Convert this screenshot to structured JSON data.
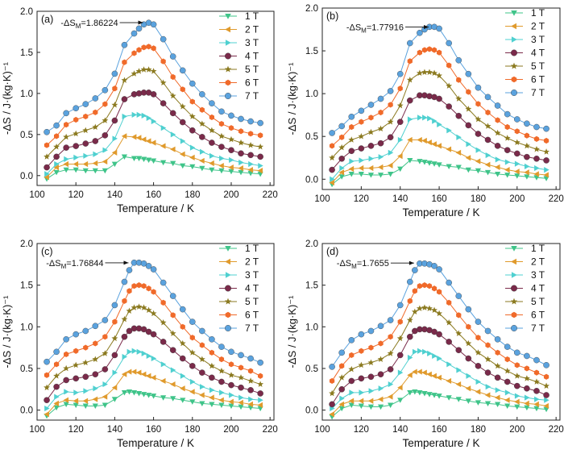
{
  "chart_data": [
    {
      "type": "line",
      "panel_label": "(a)",
      "annotation": {
        "prefix": "-ΔS",
        "sub": "M",
        "value": "=1.86224",
        "x": 157.5,
        "y": 1.86224
      },
      "xlabel": "Temperature / K",
      "ylabel": "-ΔS / J·(kg·K)⁻¹",
      "xlim": [
        100,
        222
      ],
      "ylim": [
        -0.12,
        2.0
      ],
      "x_ticks": [
        "100",
        "120",
        "140",
        "160",
        "180",
        "200",
        "220"
      ],
      "y_ticks": [
        "0.0",
        "0.5",
        "1.0",
        "1.5",
        "2.0"
      ],
      "x": [
        105,
        110,
        115,
        120,
        125,
        130,
        135,
        140,
        145,
        150,
        152.5,
        155,
        157.5,
        160,
        165,
        170,
        175,
        180,
        185,
        190,
        195,
        200,
        205,
        210,
        215
      ],
      "series": [
        {
          "name": "1 T",
          "values": [
            -0.04,
            0.04,
            0.07,
            0.07,
            0.06,
            0.06,
            0.06,
            0.14,
            0.23,
            0.21,
            0.21,
            0.2,
            0.19,
            0.18,
            0.16,
            0.15,
            0.12,
            0.11,
            0.09,
            0.07,
            0.06,
            0.05,
            0.04,
            0.03,
            0.02
          ]
        },
        {
          "name": "2 T",
          "values": [
            -0.02,
            0.1,
            0.14,
            0.14,
            0.14,
            0.15,
            0.17,
            0.28,
            0.48,
            0.47,
            0.46,
            0.44,
            0.42,
            0.4,
            0.36,
            0.32,
            0.26,
            0.22,
            0.18,
            0.15,
            0.12,
            0.1,
            0.09,
            0.07,
            0.06
          ]
        },
        {
          "name": "3 T",
          "values": [
            0.02,
            0.14,
            0.2,
            0.22,
            0.24,
            0.26,
            0.31,
            0.45,
            0.72,
            0.74,
            0.74,
            0.73,
            0.7,
            0.66,
            0.58,
            0.5,
            0.42,
            0.34,
            0.29,
            0.24,
            0.21,
            0.19,
            0.16,
            0.14,
            0.12
          ]
        },
        {
          "name": "4 T",
          "values": [
            0.1,
            0.23,
            0.34,
            0.36,
            0.39,
            0.42,
            0.49,
            0.67,
            0.93,
            0.99,
            1.0,
            1.01,
            1.01,
            0.99,
            0.88,
            0.76,
            0.65,
            0.55,
            0.47,
            0.4,
            0.35,
            0.31,
            0.27,
            0.25,
            0.23
          ]
        },
        {
          "name": "5 T",
          "values": [
            0.23,
            0.35,
            0.47,
            0.51,
            0.55,
            0.59,
            0.67,
            0.86,
            1.16,
            1.24,
            1.27,
            1.29,
            1.29,
            1.27,
            1.13,
            0.97,
            0.84,
            0.72,
            0.63,
            0.55,
            0.48,
            0.44,
            0.4,
            0.37,
            0.35
          ]
        },
        {
          "name": "6 T",
          "values": [
            0.37,
            0.48,
            0.62,
            0.68,
            0.72,
            0.77,
            0.87,
            1.06,
            1.38,
            1.49,
            1.53,
            1.56,
            1.57,
            1.55,
            1.39,
            1.2,
            1.05,
            0.9,
            0.8,
            0.71,
            0.63,
            0.58,
            0.54,
            0.51,
            0.49
          ]
        },
        {
          "name": "7 T",
          "values": [
            0.53,
            0.61,
            0.76,
            0.82,
            0.87,
            0.94,
            1.04,
            1.24,
            1.59,
            1.73,
            1.79,
            1.84,
            1.86,
            1.84,
            1.66,
            1.45,
            1.28,
            1.12,
            0.99,
            0.88,
            0.78,
            0.73,
            0.69,
            0.66,
            0.64
          ]
        }
      ]
    },
    {
      "type": "line",
      "panel_label": "(b)",
      "annotation": {
        "prefix": "-ΔS",
        "sub": "M",
        "value": "=1.77916",
        "x": 157.5,
        "y": 1.77916
      },
      "xlabel": "Temperature / K",
      "ylabel": "-ΔS / J·(kg·K)⁻¹",
      "xlim": [
        100,
        222
      ],
      "ylim": [
        -0.12,
        2.0
      ],
      "x_ticks": [
        "100",
        "120",
        "140",
        "160",
        "180",
        "200",
        "220"
      ],
      "y_ticks": [
        "0.0",
        "0.5",
        "1.0",
        "1.5",
        "2.0"
      ],
      "x": [
        105,
        110,
        115,
        120,
        125,
        130,
        135,
        140,
        145,
        150,
        152.5,
        155,
        157.5,
        160,
        165,
        170,
        175,
        180,
        185,
        190,
        195,
        200,
        205,
        210,
        215
      ],
      "series": [
        {
          "name": "1 T",
          "values": [
            -0.06,
            0.03,
            0.06,
            0.06,
            0.05,
            0.05,
            0.06,
            0.12,
            0.22,
            0.21,
            0.2,
            0.19,
            0.18,
            0.17,
            0.15,
            0.14,
            0.11,
            0.1,
            0.08,
            0.06,
            0.05,
            0.04,
            0.03,
            0.02,
            0.01
          ]
        },
        {
          "name": "2 T",
          "values": [
            -0.04,
            0.08,
            0.12,
            0.13,
            0.13,
            0.14,
            0.16,
            0.27,
            0.46,
            0.46,
            0.45,
            0.43,
            0.41,
            0.39,
            0.35,
            0.31,
            0.25,
            0.21,
            0.17,
            0.14,
            0.11,
            0.09,
            0.08,
            0.06,
            0.05
          ]
        },
        {
          "name": "3 T",
          "values": [
            0.0,
            0.13,
            0.21,
            0.22,
            0.24,
            0.26,
            0.31,
            0.46,
            0.7,
            0.72,
            0.72,
            0.71,
            0.68,
            0.64,
            0.57,
            0.49,
            0.41,
            0.34,
            0.28,
            0.23,
            0.2,
            0.18,
            0.15,
            0.13,
            0.11
          ]
        },
        {
          "name": "4 T",
          "values": [
            0.11,
            0.24,
            0.33,
            0.36,
            0.39,
            0.42,
            0.49,
            0.67,
            0.92,
            0.98,
            0.98,
            0.97,
            0.96,
            0.94,
            0.85,
            0.74,
            0.63,
            0.53,
            0.46,
            0.39,
            0.34,
            0.3,
            0.26,
            0.24,
            0.22
          ]
        },
        {
          "name": "5 T",
          "values": [
            0.25,
            0.37,
            0.46,
            0.5,
            0.55,
            0.59,
            0.67,
            0.86,
            1.16,
            1.24,
            1.25,
            1.25,
            1.24,
            1.21,
            1.09,
            0.94,
            0.82,
            0.7,
            0.62,
            0.54,
            0.48,
            0.43,
            0.39,
            0.35,
            0.32
          ]
        },
        {
          "name": "6 T",
          "values": [
            0.39,
            0.49,
            0.61,
            0.67,
            0.72,
            0.78,
            0.87,
            1.06,
            1.38,
            1.48,
            1.51,
            1.52,
            1.51,
            1.48,
            1.33,
            1.16,
            1.02,
            0.88,
            0.78,
            0.69,
            0.61,
            0.56,
            0.51,
            0.47,
            0.45
          ]
        },
        {
          "name": "7 T",
          "values": [
            0.54,
            0.62,
            0.73,
            0.8,
            0.87,
            0.94,
            1.03,
            1.23,
            1.59,
            1.71,
            1.75,
            1.78,
            1.78,
            1.76,
            1.59,
            1.39,
            1.23,
            1.07,
            0.96,
            0.86,
            0.76,
            0.7,
            0.65,
            0.61,
            0.59
          ]
        }
      ]
    },
    {
      "type": "line",
      "panel_label": "(c)",
      "annotation": {
        "prefix": "-ΔS",
        "sub": "M",
        "value": "=1.76844",
        "x": 150,
        "y": 1.76844
      },
      "xlabel": "Temperature / K",
      "ylabel": "-ΔS / J·(kg·K)⁻¹",
      "xlim": [
        100,
        222
      ],
      "ylim": [
        -0.12,
        2.0
      ],
      "x_ticks": [
        "100",
        "120",
        "140",
        "160",
        "180",
        "200",
        "220"
      ],
      "y_ticks": [
        "0.0",
        "0.5",
        "1.0",
        "1.5",
        "2.0"
      ],
      "x": [
        105,
        110,
        115,
        120,
        125,
        130,
        135,
        140,
        145,
        147.5,
        150,
        152.5,
        155,
        157.5,
        160,
        165,
        170,
        175,
        180,
        185,
        190,
        195,
        200,
        205,
        210,
        215
      ],
      "series": [
        {
          "name": "1 T",
          "values": [
            -0.07,
            0.03,
            0.07,
            0.06,
            0.05,
            0.05,
            0.06,
            0.13,
            0.21,
            0.22,
            0.21,
            0.2,
            0.19,
            0.18,
            0.17,
            0.15,
            0.14,
            0.12,
            0.1,
            0.08,
            0.07,
            0.06,
            0.05,
            0.04,
            0.03,
            0.02
          ]
        },
        {
          "name": "2 T",
          "values": [
            -0.05,
            0.08,
            0.12,
            0.11,
            0.11,
            0.13,
            0.16,
            0.27,
            0.43,
            0.46,
            0.46,
            0.45,
            0.43,
            0.41,
            0.39,
            0.35,
            0.31,
            0.26,
            0.22,
            0.18,
            0.15,
            0.12,
            0.1,
            0.09,
            0.07,
            0.06
          ]
        },
        {
          "name": "3 T",
          "values": [
            0.02,
            0.16,
            0.22,
            0.21,
            0.23,
            0.26,
            0.31,
            0.45,
            0.64,
            0.7,
            0.71,
            0.7,
            0.68,
            0.65,
            0.62,
            0.55,
            0.48,
            0.41,
            0.34,
            0.28,
            0.24,
            0.21,
            0.18,
            0.15,
            0.13,
            0.12
          ]
        },
        {
          "name": "4 T",
          "values": [
            0.12,
            0.28,
            0.36,
            0.38,
            0.4,
            0.43,
            0.49,
            0.66,
            0.88,
            0.95,
            0.98,
            0.98,
            0.97,
            0.94,
            0.91,
            0.82,
            0.72,
            0.62,
            0.53,
            0.45,
            0.39,
            0.34,
            0.3,
            0.27,
            0.24,
            0.2
          ]
        },
        {
          "name": "5 T",
          "values": [
            0.27,
            0.41,
            0.5,
            0.54,
            0.57,
            0.61,
            0.68,
            0.86,
            1.09,
            1.19,
            1.23,
            1.24,
            1.23,
            1.2,
            1.16,
            1.05,
            0.92,
            0.8,
            0.69,
            0.61,
            0.53,
            0.47,
            0.42,
            0.39,
            0.35,
            0.31
          ]
        },
        {
          "name": "6 T",
          "values": [
            0.42,
            0.55,
            0.67,
            0.71,
            0.75,
            0.8,
            0.88,
            1.06,
            1.31,
            1.43,
            1.49,
            1.5,
            1.49,
            1.46,
            1.42,
            1.29,
            1.14,
            1.0,
            0.87,
            0.78,
            0.69,
            0.61,
            0.55,
            0.51,
            0.47,
            0.41
          ]
        },
        {
          "name": "7 T",
          "values": [
            0.58,
            0.7,
            0.85,
            0.91,
            0.95,
            1.01,
            1.08,
            1.26,
            1.54,
            1.68,
            1.77,
            1.77,
            1.76,
            1.73,
            1.69,
            1.53,
            1.37,
            1.21,
            1.06,
            0.95,
            0.85,
            0.76,
            0.7,
            0.66,
            0.62,
            0.57
          ]
        }
      ]
    },
    {
      "type": "line",
      "panel_label": "(d)",
      "annotation": {
        "prefix": "-ΔS",
        "sub": "M",
        "value": "=1.7655",
        "x": 150,
        "y": 1.7655
      },
      "xlabel": "Temperature / K",
      "ylabel": "-ΔS / J·(kg·K)⁻¹",
      "xlim": [
        100,
        222
      ],
      "ylim": [
        -0.12,
        2.0
      ],
      "x_ticks": [
        "100",
        "120",
        "140",
        "160",
        "180",
        "200",
        "220"
      ],
      "y_ticks": [
        "0.0",
        "0.5",
        "1.0",
        "1.5",
        "2.0"
      ],
      "x": [
        105,
        110,
        115,
        120,
        125,
        130,
        135,
        140,
        145,
        147.5,
        150,
        152.5,
        155,
        157.5,
        160,
        165,
        170,
        175,
        180,
        185,
        190,
        195,
        200,
        205,
        210,
        215
      ],
      "series": [
        {
          "name": "1 T",
          "values": [
            -0.08,
            0.02,
            0.06,
            0.05,
            0.04,
            0.04,
            0.06,
            0.12,
            0.21,
            0.22,
            0.21,
            0.2,
            0.19,
            0.18,
            0.17,
            0.15,
            0.13,
            0.11,
            0.09,
            0.08,
            0.07,
            0.05,
            0.04,
            0.03,
            0.02,
            0.01
          ]
        },
        {
          "name": "2 T",
          "values": [
            -0.05,
            0.07,
            0.11,
            0.11,
            0.11,
            0.13,
            0.16,
            0.27,
            0.42,
            0.46,
            0.46,
            0.45,
            0.43,
            0.41,
            0.39,
            0.35,
            0.31,
            0.26,
            0.22,
            0.18,
            0.15,
            0.12,
            0.1,
            0.08,
            0.07,
            0.05
          ]
        },
        {
          "name": "3 T",
          "values": [
            0.02,
            0.14,
            0.21,
            0.21,
            0.23,
            0.26,
            0.31,
            0.45,
            0.63,
            0.7,
            0.71,
            0.7,
            0.68,
            0.65,
            0.62,
            0.55,
            0.48,
            0.41,
            0.34,
            0.28,
            0.24,
            0.21,
            0.17,
            0.15,
            0.13,
            0.12
          ]
        },
        {
          "name": "4 T",
          "values": [
            0.07,
            0.25,
            0.35,
            0.38,
            0.4,
            0.43,
            0.49,
            0.66,
            0.88,
            0.95,
            0.97,
            0.97,
            0.96,
            0.94,
            0.91,
            0.82,
            0.72,
            0.62,
            0.53,
            0.45,
            0.39,
            0.34,
            0.29,
            0.26,
            0.23,
            0.18
          ]
        },
        {
          "name": "5 T",
          "values": [
            0.2,
            0.39,
            0.49,
            0.54,
            0.57,
            0.61,
            0.68,
            0.86,
            1.08,
            1.18,
            1.22,
            1.23,
            1.22,
            1.2,
            1.16,
            1.05,
            0.92,
            0.8,
            0.69,
            0.61,
            0.53,
            0.47,
            0.41,
            0.38,
            0.34,
            0.29
          ]
        },
        {
          "name": "6 T",
          "values": [
            0.35,
            0.53,
            0.66,
            0.71,
            0.75,
            0.8,
            0.88,
            1.06,
            1.31,
            1.43,
            1.49,
            1.5,
            1.49,
            1.46,
            1.42,
            1.29,
            1.14,
            1.0,
            0.87,
            0.78,
            0.69,
            0.61,
            0.54,
            0.5,
            0.45,
            0.4
          ]
        },
        {
          "name": "7 T",
          "values": [
            0.52,
            0.69,
            0.84,
            0.91,
            0.95,
            1.01,
            1.08,
            1.26,
            1.54,
            1.68,
            1.76,
            1.76,
            1.75,
            1.73,
            1.69,
            1.53,
            1.37,
            1.21,
            1.06,
            0.95,
            0.85,
            0.76,
            0.69,
            0.65,
            0.6,
            0.54
          ]
        }
      ]
    }
  ],
  "series_style": [
    {
      "marker": "triangle-down",
      "color": "#3fc489"
    },
    {
      "marker": "triangle-left",
      "color": "#e09a2c"
    },
    {
      "marker": "triangle-right",
      "color": "#4fd0d0"
    },
    {
      "marker": "circle",
      "color": "#7a2a4a"
    },
    {
      "marker": "star",
      "color": "#8b7a20"
    },
    {
      "marker": "hexagon",
      "color": "#f06a2a"
    },
    {
      "marker": "circle",
      "color": "#5aa2de"
    }
  ]
}
